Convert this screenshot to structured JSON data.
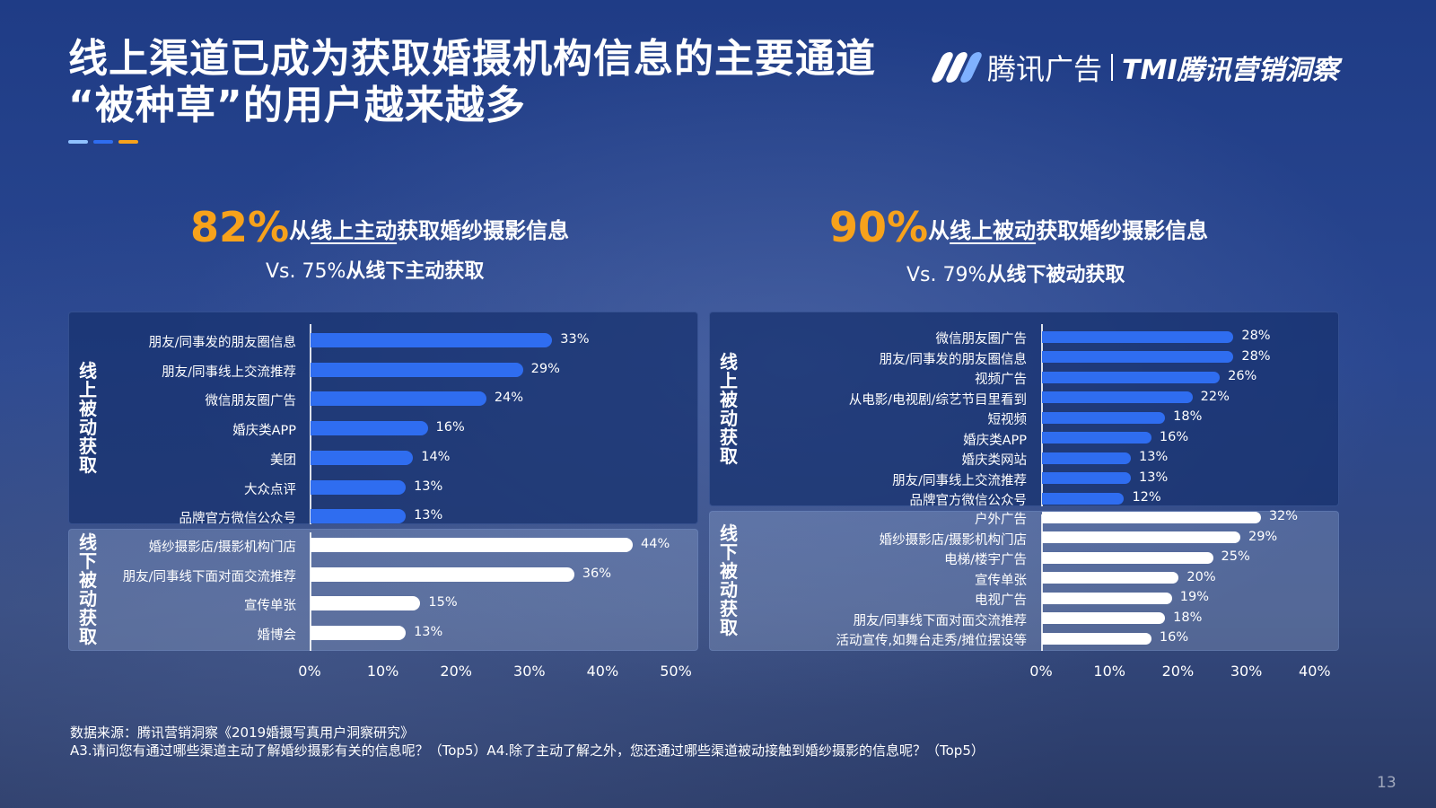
{
  "title": {
    "line1": "线上渠道已成为获取婚摄机构信息的主要通道",
    "line2": "“被种草”的用户越来越多"
  },
  "logo": {
    "brand": "腾讯广告",
    "sub": "TMI腾讯营销洞察"
  },
  "colors": {
    "accent_orange": "#f7a21b",
    "bar_blue": "#2f6df0",
    "bar_white": "#ffffff",
    "accent_light_blue": "#8fc1ff"
  },
  "left": {
    "pct": "82%",
    "head_part1": "从",
    "head_underline": "线上主动",
    "head_part2": "获取婚纱摄影信息",
    "sub_prefix": "Vs. 75%",
    "sub_bold": "从线下主动获取"
  },
  "right": {
    "pct": "90%",
    "head_part1": "从",
    "head_underline": "线上被动",
    "head_part2": "获取婚纱摄影信息",
    "sub_prefix": "Vs. 79%",
    "sub_bold": "从线下被动获取"
  },
  "chart_data": [
    {
      "type": "bar",
      "orientation": "horizontal",
      "xlim": [
        0,
        50
      ],
      "ticks": [
        "0%",
        "10%",
        "20%",
        "30%",
        "40%",
        "50%"
      ],
      "groups": [
        {
          "name": "线上被动获取",
          "categories": [
            "朋友/同事发的朋友圈信息",
            "朋友/同事线上交流推荐",
            "微信朋友圈广告",
            "婚庆类APP",
            "美团",
            "大众点评",
            "品牌官方微信公众号"
          ],
          "values": [
            33,
            29,
            24,
            16,
            14,
            13,
            13
          ],
          "labels": [
            "33%",
            "29%",
            "24%",
            "16%",
            "14%",
            "13%",
            "13%"
          ]
        },
        {
          "name": "线下被动获取",
          "categories": [
            "婚纱摄影店/摄影机构门店",
            "朋友/同事线下面对面交流推荐",
            "宣传单张",
            "婚博会"
          ],
          "values": [
            44,
            36,
            15,
            13
          ],
          "labels": [
            "44%",
            "36%",
            "15%",
            "13%"
          ]
        }
      ]
    },
    {
      "type": "bar",
      "orientation": "horizontal",
      "xlim": [
        0,
        40
      ],
      "ticks": [
        "0%",
        "10%",
        "20%",
        "30%",
        "40%"
      ],
      "groups": [
        {
          "name": "线上被动获取",
          "categories": [
            "微信朋友圈广告",
            "朋友/同事发的朋友圈信息",
            "视频广告",
            "从电影/电视剧/综艺节目里看到",
            "短视频",
            "婚庆类APP",
            "婚庆类网站",
            "朋友/同事线上交流推荐",
            "品牌官方微信公众号"
          ],
          "values": [
            28,
            28,
            26,
            22,
            18,
            16,
            13,
            13,
            12
          ],
          "labels": [
            "28%",
            "28%",
            "26%",
            "22%",
            "18%",
            "16%",
            "13%",
            "13%",
            "12%"
          ]
        },
        {
          "name": "线下被动获取",
          "categories": [
            "户外广告",
            "婚纱摄影店/摄影机构门店",
            "电梯/楼宇广告",
            "宣传单张",
            "电视广告",
            "朋友/同事线下面对面交流推荐",
            "活动宣传,如舞台走秀/摊位摆设等"
          ],
          "values": [
            32,
            29,
            25,
            20,
            19,
            18,
            16
          ],
          "labels": [
            "32%",
            "29%",
            "25%",
            "20%",
            "19%",
            "18%",
            "16%"
          ]
        }
      ]
    }
  ],
  "footnote": {
    "line1": "数据来源：腾讯营销洞察《2019婚摄写真用户洞察研究》",
    "line2": "A3.请问您有通过哪些渠道主动了解婚纱摄影有关的信息呢？（Top5）A4.除了主动了解之外，您还通过哪些渠道被动接触到婚纱摄影的信息呢？（Top5）"
  },
  "page_number": "13"
}
